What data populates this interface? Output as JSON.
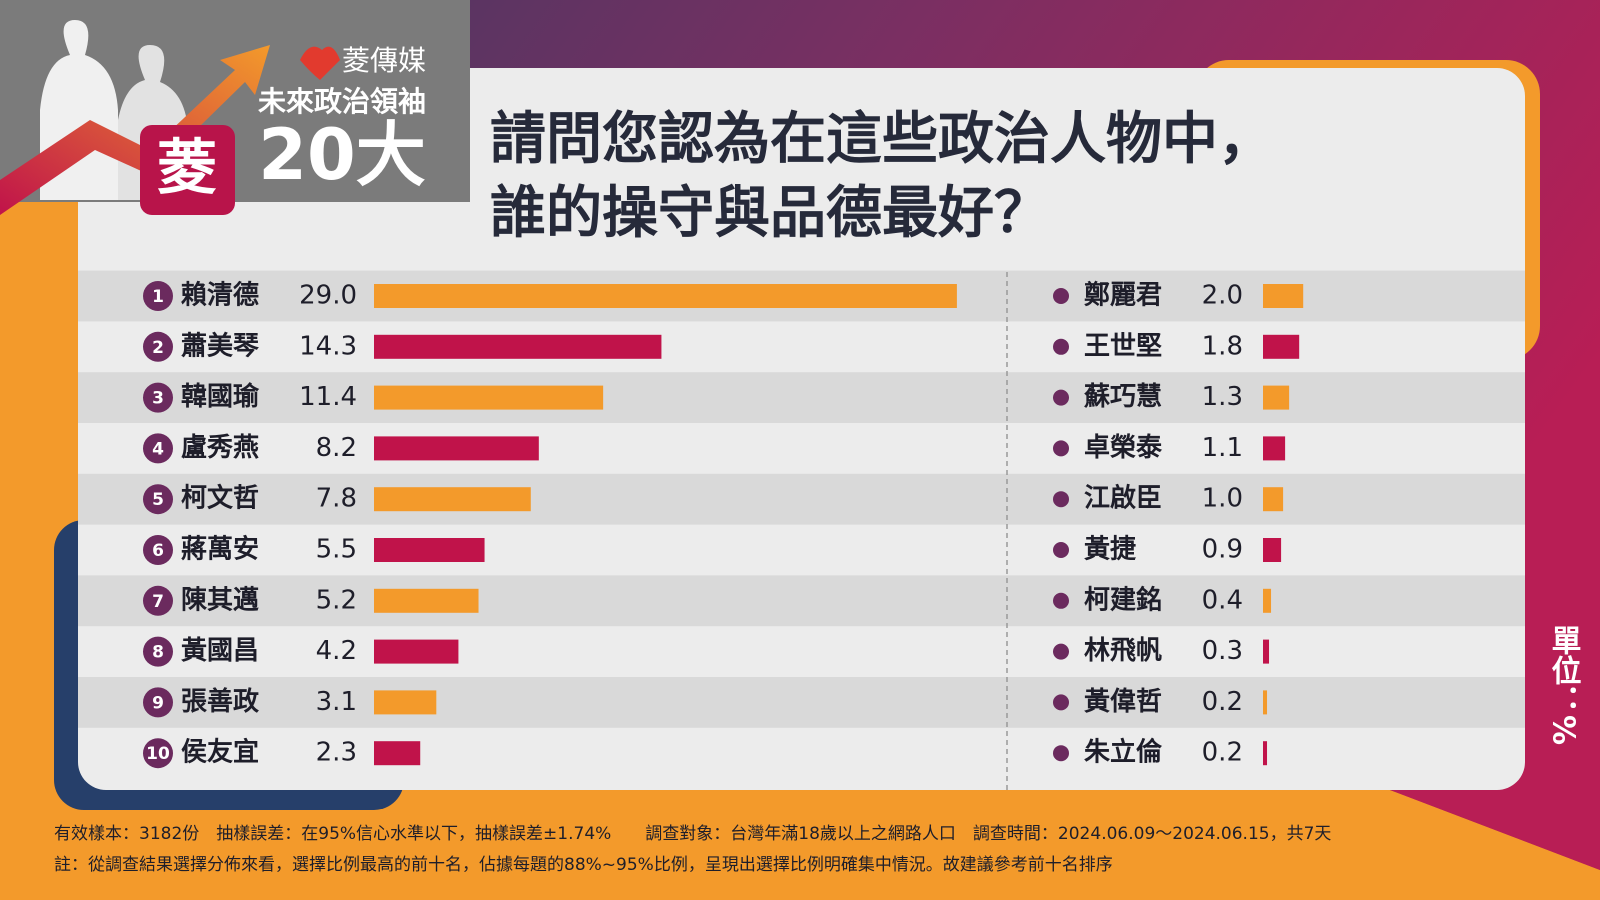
{
  "brand": "菱傳媒",
  "badge_line": "未來政治領袖",
  "badge_big": "20大",
  "badge_mark": "菱",
  "chart_data": {
    "type": "bar",
    "title_lines": [
      "請問您認為在這些政治人物中，",
      "誰的操守與品德最好？"
    ],
    "categories": [
      "賴清德",
      "蕭美琴",
      "韓國瑜",
      "盧秀燕",
      "柯文哲",
      "蔣萬安",
      "陳其邁",
      "黃國昌",
      "張善政",
      "侯友宜",
      "鄭麗君",
      "王世堅",
      "蘇巧慧",
      "卓榮泰",
      "江啟臣",
      "黃捷",
      "柯建銘",
      "林飛帆",
      "黃偉哲",
      "朱立倫"
    ],
    "values": [
      29.0,
      14.3,
      11.4,
      8.2,
      7.8,
      5.5,
      5.2,
      4.2,
      3.1,
      2.3,
      2.0,
      1.8,
      1.3,
      1.1,
      1.0,
      0.9,
      0.4,
      0.3,
      0.2,
      0.2
    ],
    "value_labels": [
      "29.0",
      "14.3",
      "11.4",
      "8.2",
      "7.8",
      "5.5",
      "5.2",
      "4.2",
      "3.1",
      "2.3",
      "2.0",
      "1.8",
      "1.3",
      "1.1",
      "1.0",
      "0.9",
      "0.4",
      "0.3",
      "0.2",
      "0.2"
    ],
    "ranks": [
      1,
      2,
      3,
      4,
      5,
      6,
      7,
      8,
      9,
      10
    ],
    "bar_colors": [
      "#f39a2b",
      "#c0134a"
    ],
    "unit": "單位：%"
  },
  "footer": [
    "有效樣本：3182份　抽樣誤差：在95%信心水準以下，抽樣誤差±1.74%　　調查對象：台灣年滿18歲以上之網路人口　調查時間：2024.06.09～2024.06.15，共7天",
    "註：從調查結果選擇分佈來看，選擇比例最高的前十名，佔據每題的88%~95%比例，呈現出選擇比例明確集中情況。故建議參考前十名排序"
  ]
}
